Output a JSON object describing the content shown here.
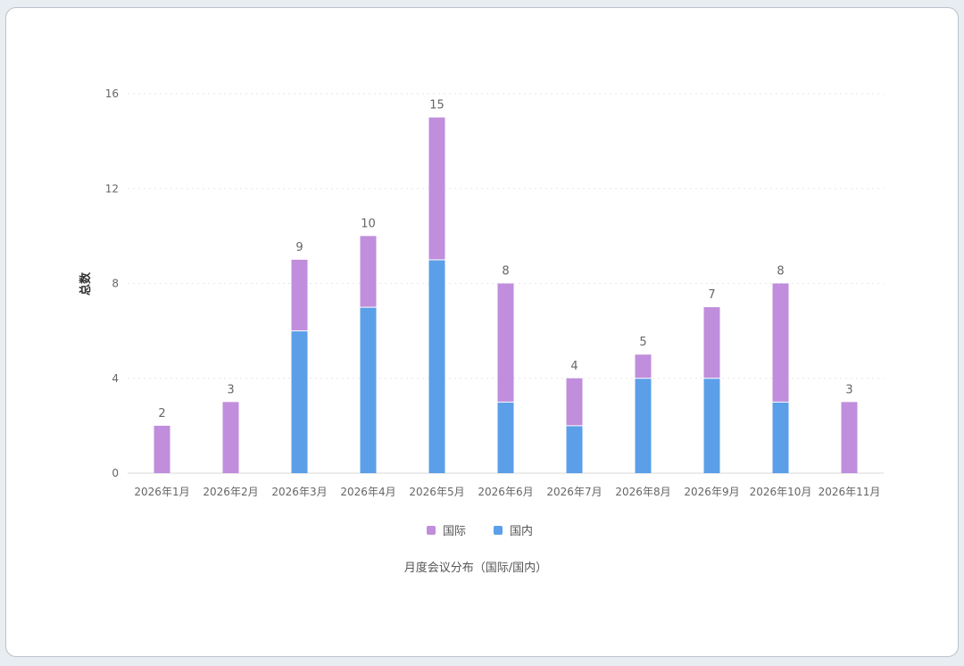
{
  "chart_data": {
    "type": "bar",
    "stacked": true,
    "title": "月度会议分布（国际/国内）",
    "ylabel": "总数",
    "xlabel": "",
    "ylim": [
      0,
      16
    ],
    "yticks": [
      0,
      4,
      8,
      12,
      16
    ],
    "grid": true,
    "legend_position": "bottom",
    "categories": [
      "2026年1月",
      "2026年2月",
      "2026年3月",
      "2026年4月",
      "2026年5月",
      "2026年6月",
      "2026年7月",
      "2026年8月",
      "2026年9月",
      "2026年10月",
      "2026年11月"
    ],
    "series": [
      {
        "name": "国内",
        "color": "#5b9fe8",
        "values": [
          0,
          0,
          6,
          7,
          9,
          3,
          2,
          4,
          4,
          3,
          0
        ]
      },
      {
        "name": "国际",
        "color": "#c08edc",
        "values": [
          2,
          3,
          3,
          3,
          6,
          5,
          2,
          1,
          3,
          5,
          3
        ]
      }
    ],
    "totals": [
      2,
      3,
      9,
      10,
      15,
      8,
      4,
      5,
      7,
      8,
      3
    ],
    "legend_order": [
      "国际",
      "国内"
    ]
  }
}
